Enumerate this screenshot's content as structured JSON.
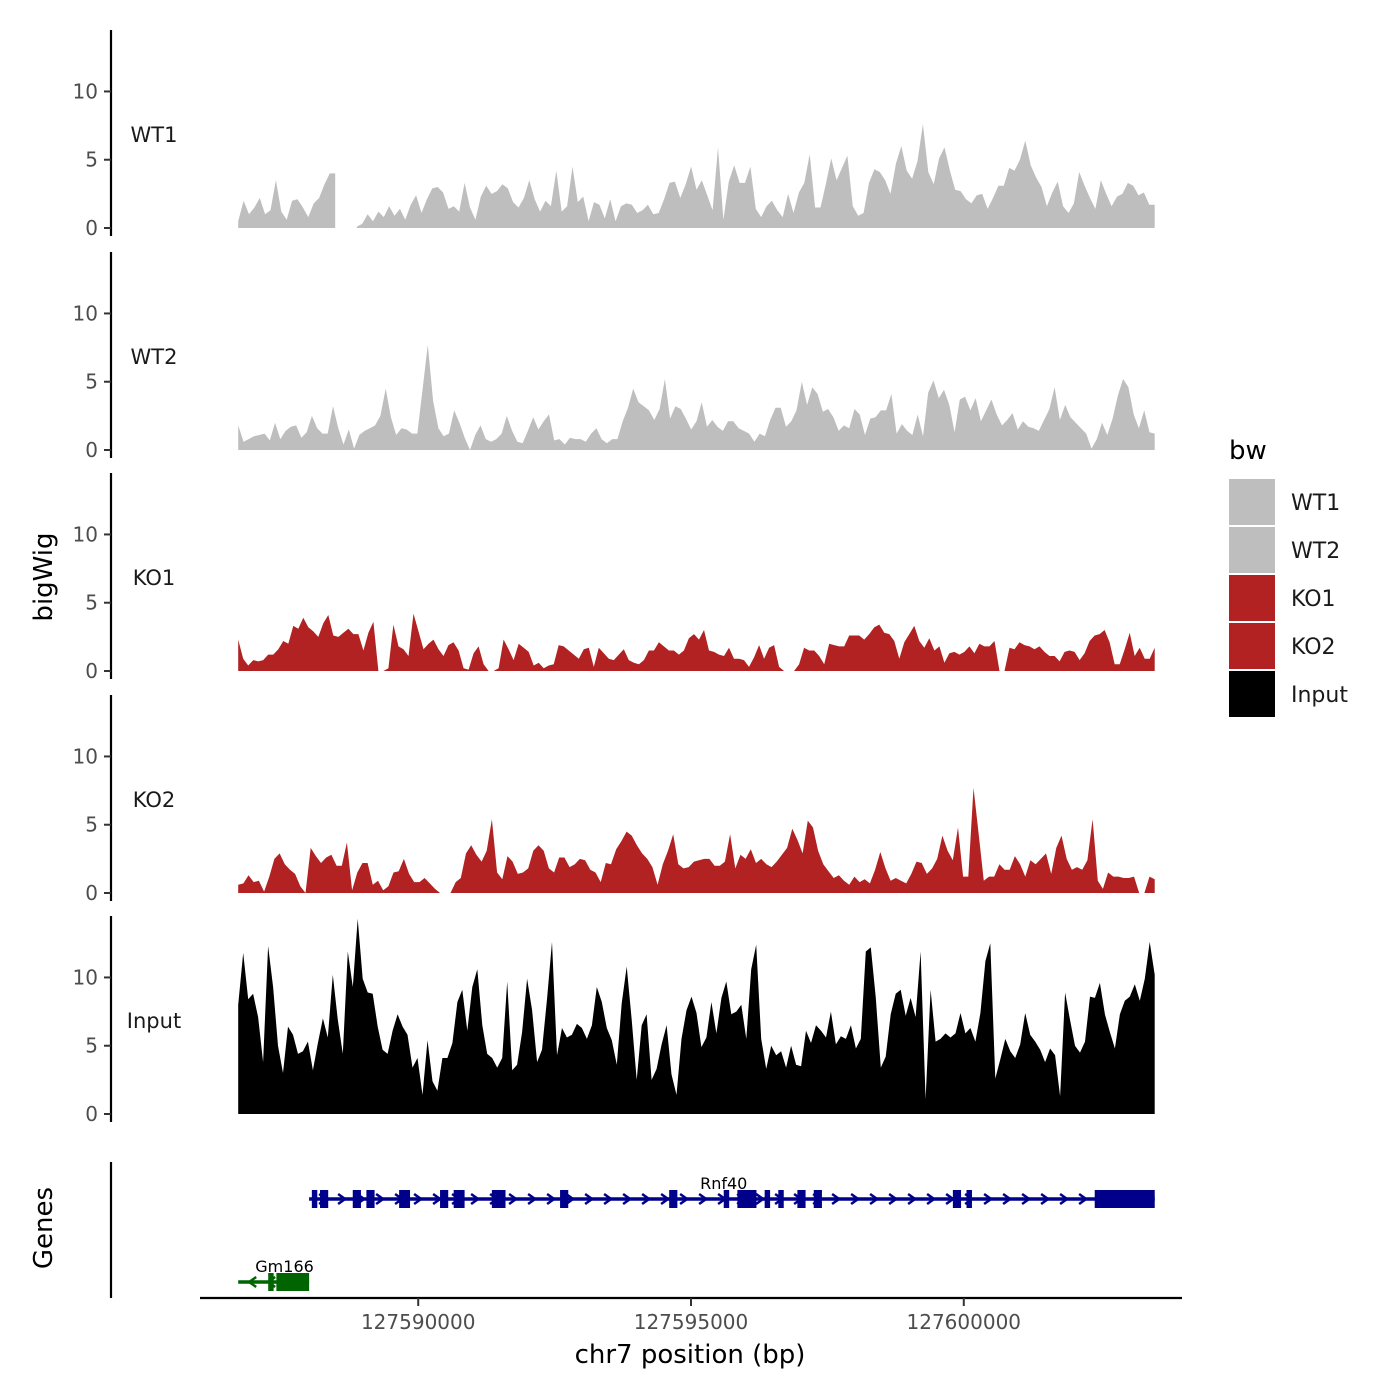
{
  "chart_data": {
    "type": "area",
    "y_axis_title": "bigWig",
    "genes_axis_title": "Genes",
    "x_axis_title": "chr7 position (bp)",
    "x_range": [
      127586000,
      127604000
    ],
    "x_ticks": [
      {
        "value": 127590000,
        "label": "127590000"
      },
      {
        "value": 127595000,
        "label": "127595000"
      },
      {
        "value": 127600000,
        "label": "127600000"
      }
    ],
    "y_range": [
      0,
      14.5
    ],
    "y_ticks": [
      {
        "value": 0,
        "label": "0"
      },
      {
        "value": 5,
        "label": "5"
      },
      {
        "value": 10,
        "label": "10"
      }
    ],
    "legend": {
      "title": "bw",
      "entries": [
        {
          "label": "WT1",
          "color": "#bebebe"
        },
        {
          "label": "WT2",
          "color": "#bebebe"
        },
        {
          "label": "KO1",
          "color": "#b22222"
        },
        {
          "label": "KO2",
          "color": "#b22222"
        },
        {
          "label": "Input",
          "color": "#000000"
        }
      ]
    },
    "series": [
      {
        "name": "WT1",
        "color": "#bebebe",
        "x_start": 127586700,
        "x_end": 127603500,
        "values": [
          0.5,
          2,
          1,
          1.5,
          2.2,
          1,
          1.3,
          3.5,
          1.2,
          0.6,
          2,
          2.1,
          1.5,
          0.8,
          1.8,
          2.2,
          3.2,
          4,
          4,
          null,
          null,
          null,
          0.1,
          0.3,
          1,
          0.5,
          1.2,
          0.8,
          1.6,
          0.9,
          1.4,
          0.6,
          1.7,
          2.4,
          1.1,
          2.1,
          2.9,
          3,
          2.6,
          1.4,
          1.6,
          1.2,
          3.3,
          1.5,
          0.6,
          2.3,
          3.1,
          2.5,
          2.7,
          3.2,
          2.9,
          1.9,
          1.5,
          2.2,
          3.5,
          2.1,
          1.2,
          2,
          1.6,
          4.2,
          1.2,
          1.6,
          4.5,
          1.9,
          2.3,
          0.5,
          1.9,
          1.7,
          0.7,
          2.1,
          0.5,
          1.6,
          1.8,
          1.7,
          1.1,
          1.3,
          1.7,
          1,
          1.1,
          2.1,
          3.3,
          3.4,
          2.2,
          3.2,
          4.5,
          2.8,
          3.5,
          2.4,
          1.3,
          5.9,
          0.6,
          3.4,
          4.6,
          3.3,
          3.3,
          4.5,
          1.4,
          0.8,
          1.6,
          2,
          1.3,
          0.8,
          2.5,
          1.1,
          2.6,
          3.3,
          5.4,
          1.5,
          1.5,
          3.2,
          5.1,
          3.5,
          4.4,
          5.3,
          1.6,
          0.9,
          1.1,
          3.3,
          4.3,
          4.1,
          3.5,
          2.5,
          4.7,
          6,
          4.2,
          3.6,
          4.9,
          7.6,
          4.1,
          3.2,
          5.1,
          5.9,
          4.2,
          2.8,
          2.7,
          2.1,
          1.8,
          2.4,
          2.5,
          1.4,
          2.2,
          3.1,
          3.1,
          4.4,
          4.2,
          5,
          6.4,
          4.6,
          3.7,
          3,
          1.6,
          2.6,
          3.4,
          1.6,
          1.1,
          1.8,
          4.1,
          3.1,
          2.2,
          1.4,
          3.5,
          2.5,
          1.6,
          2.3,
          2.5,
          3.3,
          3.1,
          2.4,
          2.6,
          1.7,
          1.7
        ]
      },
      {
        "name": "WT2",
        "color": "#bebebe",
        "x_start": 127586700,
        "x_end": 127603500,
        "values": [
          1.8,
          0.6,
          0.8,
          1,
          1.1,
          1.2,
          0.7,
          2,
          0.8,
          1.4,
          1.7,
          1.8,
          0.9,
          1.3,
          2.5,
          1.6,
          1.2,
          1.2,
          3.2,
          1.6,
          0.4,
          1.5,
          0.1,
          1.1,
          1.4,
          1.6,
          1.8,
          2.5,
          4.5,
          2.4,
          1.1,
          1.6,
          1.5,
          1.2,
          1.2,
          4.4,
          7.7,
          3.6,
          1.6,
          1,
          1.2,
          2.9,
          2,
          0.9,
          0,
          1.1,
          1.8,
          0.8,
          0.6,
          0.8,
          1.2,
          2.5,
          1.4,
          0.6,
          0.5,
          1.4,
          2.4,
          1.5,
          2.1,
          2.6,
          0.7,
          0.8,
          0.4,
          0.9,
          0.8,
          0.8,
          0.6,
          1.2,
          1.6,
          0.8,
          0.5,
          0.8,
          0.8,
          2.1,
          3.1,
          4.5,
          3.5,
          3.2,
          2.9,
          2.2,
          3,
          5.2,
          2.3,
          3.2,
          3,
          2.3,
          1.5,
          2.1,
          3.5,
          1.7,
          2.2,
          1.7,
          1.4,
          2.1,
          2.1,
          1.6,
          1.4,
          1.2,
          0.6,
          1.2,
          1,
          2.2,
          3.1,
          3.1,
          1.7,
          2.1,
          2.9,
          5,
          3.3,
          4.6,
          4.1,
          2.8,
          3,
          2.4,
          1.4,
          1.8,
          1.6,
          3,
          2.6,
          1.1,
          2.3,
          2.4,
          2.9,
          2.9,
          4.1,
          1.2,
          1.9,
          1.4,
          1.1,
          2.6,
          1,
          4.2,
          5.1,
          3.8,
          4.4,
          3.3,
          1.3,
          3.7,
          3.9,
          2.9,
          3.8,
          2.1,
          2.9,
          3.7,
          2.6,
          1.8,
          2.2,
          2.7,
          1.5,
          2.1,
          1.7,
          1.6,
          1.4,
          2.2,
          3,
          4.6,
          2.2,
          3.3,
          2.4,
          2,
          1.6,
          1.2,
          0.1,
          0.8,
          2,
          1.1,
          2.3,
          4,
          5.2,
          4.6,
          2.6,
          1.6,
          2.9,
          1.3,
          1.2
        ]
      },
      {
        "name": "KO1",
        "color": "#b22222",
        "x_start": 127586700,
        "x_end": 127603500,
        "values": [
          2.3,
          0.9,
          0.4,
          0.8,
          0.7,
          0.8,
          1.2,
          1.2,
          1.6,
          2.2,
          2,
          3.3,
          3.1,
          3.9,
          3.2,
          2.9,
          2.5,
          3.5,
          4.1,
          2.6,
          2.5,
          2.8,
          3.1,
          2.7,
          2.7,
          1.5,
          2.8,
          3.6,
          0,
          0,
          0.2,
          3.4,
          1.8,
          1.6,
          1.1,
          4.2,
          2.9,
          1.6,
          2,
          2.3,
          1.6,
          1.1,
          1.9,
          2.1,
          1.5,
          0.2,
          0.1,
          1.3,
          1.8,
          0.5,
          0,
          0,
          0.2,
          2.3,
          1.6,
          0.8,
          2,
          1.7,
          1.4,
          0.4,
          0.6,
          0.2,
          0.4,
          0.5,
          1.9,
          1.8,
          1.5,
          1.2,
          0.9,
          1.6,
          1.7,
          0.3,
          1.7,
          1.3,
          0.9,
          0.8,
          1.2,
          1.6,
          0.8,
          0.6,
          0.5,
          0.8,
          1.5,
          1.5,
          2.1,
          1.8,
          1.5,
          1.5,
          1.2,
          1.5,
          2.4,
          2.7,
          2.3,
          3,
          1.5,
          1.4,
          1.2,
          1.1,
          1.7,
          0.9,
          0.9,
          0.8,
          0.3,
          1,
          1.9,
          0.9,
          1.7,
          1.9,
          0.3,
          0,
          0,
          0,
          0.5,
          1.7,
          1.5,
          1.5,
          1.1,
          0.5,
          2,
          1.9,
          1.8,
          1.8,
          2.6,
          2.6,
          2.6,
          2.3,
          2.7,
          3.2,
          3.4,
          2.8,
          2.7,
          2.2,
          0.9,
          2.1,
          2.7,
          3.3,
          2.2,
          1.7,
          2.4,
          1.5,
          1.8,
          0.6,
          1.3,
          1.4,
          1.2,
          1.4,
          1.8,
          1.3,
          2,
          1.8,
          1.8,
          2.2,
          0,
          0,
          1.7,
          1.6,
          2.1,
          1.9,
          1.8,
          1.6,
          1.8,
          1.4,
          1.1,
          1.1,
          0.7,
          1.4,
          1.5,
          1.4,
          0.8,
          1.3,
          2.2,
          2.6,
          2.7,
          3,
          2.1,
          0.5,
          0.5,
          1.6,
          2.8,
          1.1,
          1.7,
          0.9,
          0.9,
          1.7
        ]
      },
      {
        "name": "KO2",
        "color": "#b22222",
        "x_start": 127586700,
        "x_end": 127603500,
        "values": [
          0.6,
          0.7,
          1.3,
          0.8,
          0.9,
          0.1,
          1.2,
          2.5,
          2.9,
          2.1,
          1.7,
          1.4,
          0.5,
          0,
          3.3,
          2.7,
          2.2,
          2.6,
          2.8,
          2,
          2,
          3.7,
          0.2,
          1.5,
          2.2,
          2.2,
          0.6,
          0.9,
          0.2,
          0.5,
          1.5,
          1.6,
          2.5,
          1.4,
          0.8,
          0.8,
          1.1,
          0.7,
          0.3,
          0,
          0,
          0,
          0.8,
          1.1,
          2.9,
          3.5,
          2.8,
          2.3,
          3.1,
          5.4,
          1.5,
          1,
          2.7,
          2.3,
          1.4,
          1.5,
          1.8,
          3.1,
          3.5,
          3.1,
          1.8,
          1.5,
          2.6,
          2.6,
          1.9,
          2.1,
          2.5,
          2.4,
          1.7,
          1.5,
          0.8,
          2.2,
          2.1,
          3.2,
          3.8,
          4.5,
          4.2,
          3.5,
          2.9,
          2.5,
          1.9,
          0.6,
          2.1,
          3.1,
          4.3,
          2.1,
          1.8,
          1.9,
          2.3,
          2.4,
          2.5,
          2.5,
          2,
          2,
          2.3,
          4.3,
          1.8,
          2.8,
          2.5,
          3.2,
          2.2,
          2.5,
          2.1,
          1.9,
          2.3,
          2.8,
          3.3,
          4.7,
          3.9,
          2.9,
          5.3,
          4.8,
          3.1,
          2.1,
          1.6,
          1.1,
          1.3,
          0.9,
          0.6,
          1.2,
          0.8,
          1,
          0.7,
          1.7,
          3,
          1.8,
          0.9,
          1.1,
          0.9,
          0.7,
          1.4,
          2.3,
          2.2,
          1.4,
          1.8,
          2.5,
          4.2,
          3.1,
          2.4,
          4.8,
          1.2,
          1.2,
          7.7,
          4.3,
          0.9,
          1.2,
          1.2,
          2.1,
          1.7,
          1.7,
          2.7,
          2.1,
          1.2,
          2.4,
          2.1,
          2.5,
          2.9,
          1.4,
          3.3,
          4.2,
          2.5,
          1.7,
          1.9,
          1.7,
          2.4,
          5.4,
          0.9,
          0.3,
          1.5,
          1.2,
          1.2,
          1.1,
          1.1,
          1.2,
          0,
          0,
          1.2,
          1
        ]
      },
      {
        "name": "Input",
        "color": "#000000",
        "x_start": 127586700,
        "x_end": 127603500,
        "values": [
          8,
          11.8,
          8.4,
          8.8,
          7.1,
          3.8,
          12.3,
          9.3,
          5,
          3,
          6.4,
          5.8,
          4.4,
          4.6,
          5.3,
          3.2,
          5.2,
          7,
          5.6,
          10.2,
          6.9,
          4.4,
          11.9,
          9.3,
          14.3,
          9.9,
          8.9,
          8.8,
          6.4,
          4.7,
          4.4,
          6.1,
          7.3,
          6.4,
          5.8,
          3.4,
          4.1,
          1.4,
          5.4,
          2.4,
          1.7,
          4.1,
          4.1,
          5.2,
          8.2,
          9.1,
          6.1,
          9.3,
          10.6,
          6.5,
          4.4,
          4.1,
          3.4,
          4.1,
          9.7,
          3.2,
          3.6,
          6,
          9.9,
          7.6,
          3.8,
          4.7,
          8.4,
          12.6,
          4.3,
          6.3,
          5.6,
          5.8,
          6.6,
          6.3,
          5.5,
          6.5,
          9.3,
          8.2,
          6.3,
          5.4,
          3.6,
          8.1,
          10.8,
          6.9,
          2.5,
          6.5,
          7.3,
          2.5,
          3.3,
          5.1,
          6.5,
          2.9,
          1.4,
          5.5,
          7.6,
          8.6,
          7.4,
          4.9,
          5.6,
          8.2,
          5.9,
          8.5,
          9.7,
          7.3,
          7.5,
          8,
          5.5,
          10.6,
          12.4,
          5.5,
          3.3,
          5,
          4.3,
          4.6,
          3.4,
          5,
          3.6,
          3.5,
          6.1,
          5.2,
          6.5,
          6.1,
          5.6,
          7.5,
          5.1,
          5.7,
          5.5,
          6.5,
          4.8,
          5.5,
          11.9,
          12.2,
          8.5,
          3.4,
          4.2,
          7.3,
          8.8,
          9.1,
          7.2,
          8.5,
          7.1,
          11.9,
          1.1,
          9.1,
          5.3,
          5.5,
          5.9,
          5.6,
          5.9,
          7.4,
          5.9,
          6.3,
          5.3,
          7.4,
          11.2,
          12.5,
          2.6,
          4,
          5.5,
          4.6,
          4.1,
          5.1,
          7.4,
          5.8,
          5.3,
          4.7,
          3.8,
          4.8,
          4.3,
          1.3,
          8.9,
          6.9,
          5,
          4.5,
          5.3,
          8.6,
          8.5,
          9.6,
          7.3,
          6,
          4.8,
          7.3,
          8.3,
          8.6,
          9.5,
          8.3,
          9.9,
          12.6,
          10.2
        ]
      }
    ],
    "genes": [
      {
        "name": "Rnf40",
        "color": "#00008b",
        "strand": "+",
        "start": 127588000,
        "end": 127603500,
        "exons": [
          [
            127588050,
            127588150
          ],
          [
            127588200,
            127588350
          ],
          [
            127588800,
            127588950
          ],
          [
            127589050,
            127589200
          ],
          [
            127589650,
            127589850
          ],
          [
            127590400,
            127590550
          ],
          [
            127590650,
            127590850
          ],
          [
            127591350,
            127591600
          ],
          [
            127592600,
            127592750
          ],
          [
            127594600,
            127594750
          ],
          [
            127595600,
            127595700
          ],
          [
            127595850,
            127596200
          ],
          [
            127596350,
            127596450
          ],
          [
            127596600,
            127596700
          ],
          [
            127596950,
            127597100
          ],
          [
            127597250,
            127597400
          ],
          [
            127599800,
            127599950
          ],
          [
            127600050,
            127600150
          ],
          [
            127602400,
            127603500
          ]
        ],
        "label_x": 127595600
      },
      {
        "name": "Gm166",
        "color": "#006400",
        "strand": "-",
        "start": 127586700,
        "end": 127588000,
        "exons": [
          [
            127587250,
            127587350
          ],
          [
            127587400,
            127588000
          ]
        ],
        "label_x": 127587550
      }
    ]
  }
}
